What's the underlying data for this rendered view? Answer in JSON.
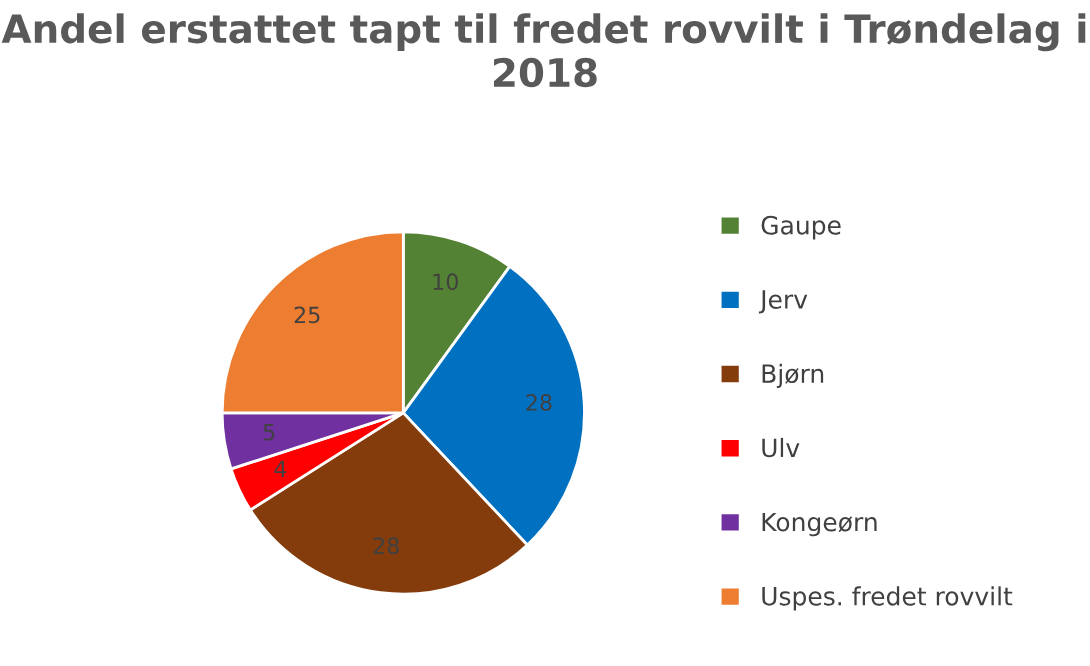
{
  "chart_data": {
    "type": "pie",
    "title": "Andel erstattet tapt til fredet rovvilt i Trøndelag i 2018",
    "categories": [
      "Gaupe",
      "Jerv",
      "Bjørn",
      "Ulv",
      "Kongeørn",
      "Uspes. fredet rovvilt"
    ],
    "values": [
      10,
      28,
      28,
      4,
      5,
      25
    ],
    "colors": [
      "#548235",
      "#0070c0",
      "#843c0c",
      "#ff0000",
      "#7030a0",
      "#ed7d31"
    ],
    "data_labels": true,
    "legend": "right"
  }
}
